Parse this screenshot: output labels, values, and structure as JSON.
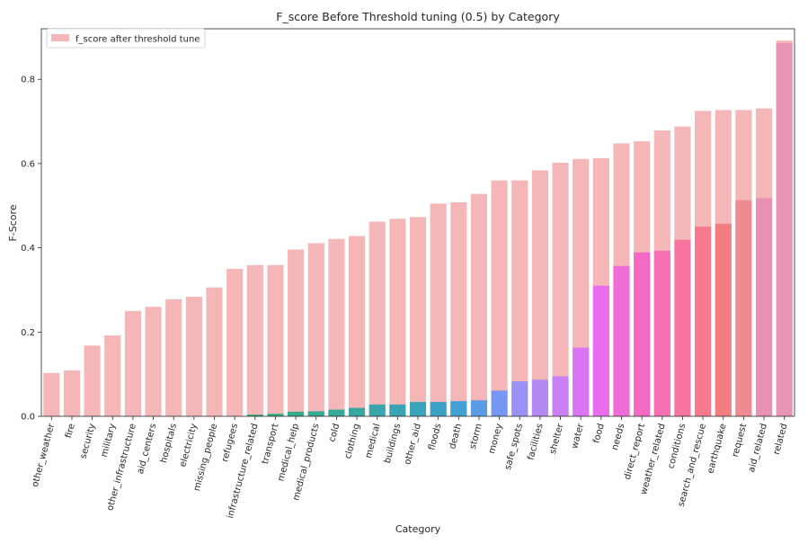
{
  "chart_data": {
    "type": "bar",
    "title": "F_score Before Threshold tuning (0.5) by Category",
    "xlabel": "Category",
    "ylabel": "F-Score",
    "ylim": [
      0,
      0.92
    ],
    "yticks": [
      "0.0",
      "0.2",
      "0.4",
      "0.6",
      "0.8"
    ],
    "grid": false,
    "legend": {
      "placement": "top-left",
      "label": "f_score after threshold tune"
    },
    "categories": [
      "other_weather",
      "fire",
      "security",
      "military",
      "other_infrastructure",
      "aid_centers",
      "hospitals",
      "electricity",
      "missing_people",
      "refugees",
      "infrastructure_related",
      "transport",
      "medical_help",
      "medical_products",
      "cold",
      "clothing",
      "medical",
      "buildings",
      "other_aid",
      "floods",
      "death",
      "storm",
      "money",
      "safe_spots",
      "facilities",
      "shelter",
      "water",
      "food",
      "needs",
      "direct_report",
      "weather_related",
      "conditions",
      "search_and_rescue",
      "earthquake",
      "request",
      "aid_related",
      "related"
    ],
    "series": [
      {
        "name": "f_score after threshold tune",
        "color": "#f4b6b6",
        "values": [
          0.103,
          0.109,
          0.168,
          0.192,
          0.25,
          0.26,
          0.278,
          0.284,
          0.306,
          0.35,
          0.359,
          0.359,
          0.396,
          0.411,
          0.421,
          0.428,
          0.462,
          0.469,
          0.473,
          0.505,
          0.508,
          0.528,
          0.56,
          0.56,
          0.584,
          0.602,
          0.611,
          0.613,
          0.648,
          0.653,
          0.679,
          0.688,
          0.725,
          0.727,
          0.727,
          0.731,
          0.892
        ]
      },
      {
        "color": "gradient",
        "values": [
          0,
          0,
          0,
          0,
          0,
          0,
          0,
          0,
          0,
          0,
          0.004,
          0.006,
          0.011,
          0.012,
          0.016,
          0.02,
          0.028,
          0.028,
          0.034,
          0.034,
          0.036,
          0.038,
          0.061,
          0.083,
          0.087,
          0.095,
          0.163,
          0.31,
          0.357,
          0.389,
          0.393,
          0.419,
          0.45,
          0.457,
          0.513,
          0.518,
          0.886
        ],
        "colors": [
          "#f77189",
          "#f7754f",
          "#e48931",
          "#cf9431",
          "#bb9831",
          "#ae9d31",
          "#97a431",
          "#77ab31",
          "#4aa431",
          "#33b03f",
          "#34ae6e",
          "#35ac82",
          "#36ab8c",
          "#36aa92",
          "#37a99a",
          "#38a7a2",
          "#39a6ab",
          "#3aa4b4",
          "#3ba3bc",
          "#3da1c6",
          "#43a0d2",
          "#5a9ce4",
          "#7597f4",
          "#9b91f4",
          "#b489f4",
          "#c980f4",
          "#dc75f4",
          "#e86ceb",
          "#ef6bd6",
          "#f369c4",
          "#f56fb2",
          "#f6749f",
          "#f7798e",
          "#f37c80",
          "#ee8a92",
          "#e991b2",
          "#e994b2"
        ]
      }
    ]
  }
}
